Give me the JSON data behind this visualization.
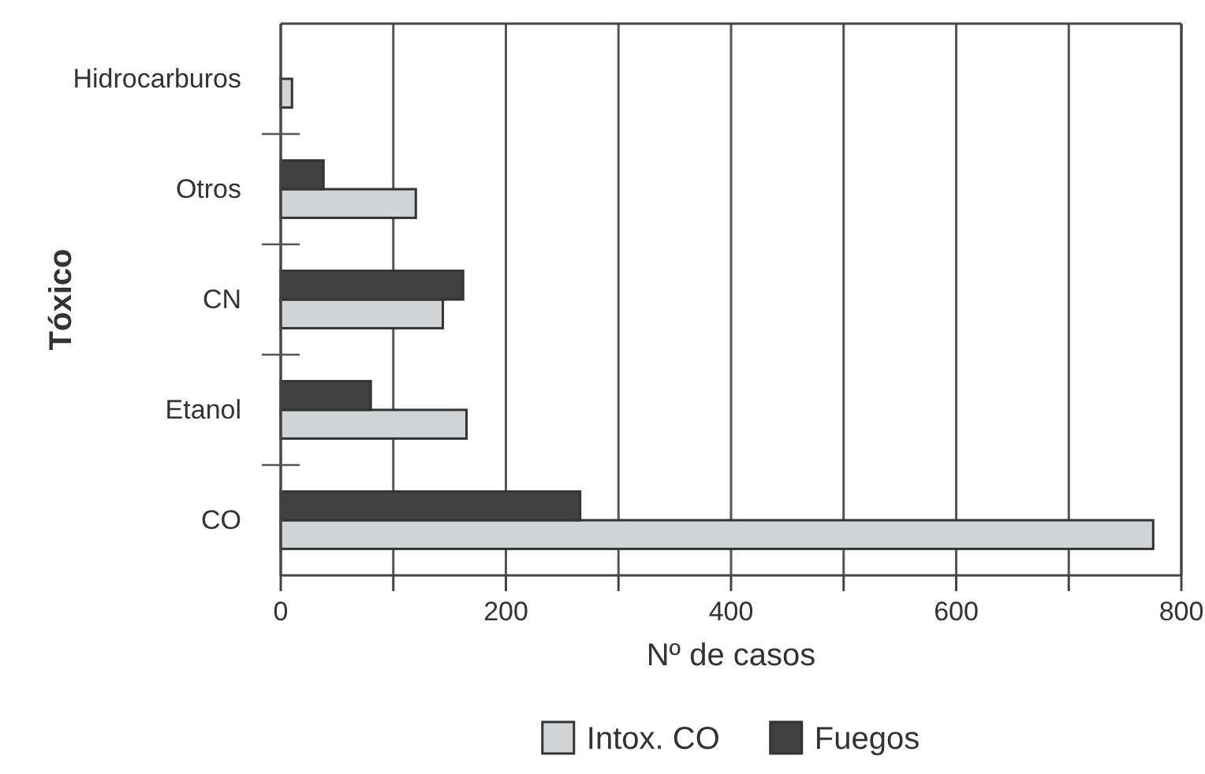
{
  "chart_data": {
    "type": "bar",
    "orientation": "horizontal",
    "xlabel": "Nº de casos",
    "ylabel": "Tóxico",
    "categories": [
      "Hidrocarburos",
      "Otros",
      "CN",
      "Etanol",
      "CO"
    ],
    "series": [
      {
        "name": "Intox. CO",
        "color": "#d1d3d4",
        "values": [
          10,
          120,
          144,
          165,
          775
        ]
      },
      {
        "name": "Fuegos",
        "color": "#404040",
        "values": [
          null,
          38,
          162,
          80,
          266
        ]
      }
    ],
    "xlim": [
      0,
      800
    ],
    "xticks": [
      0,
      {
        "value": 100,
        "label": null
      },
      200,
      {
        "value": 300,
        "label": null
      },
      400,
      {
        "value": 500,
        "label": null
      },
      600,
      {
        "value": 700,
        "label": null
      },
      800
    ],
    "grid": "x",
    "legend": "bottom"
  }
}
